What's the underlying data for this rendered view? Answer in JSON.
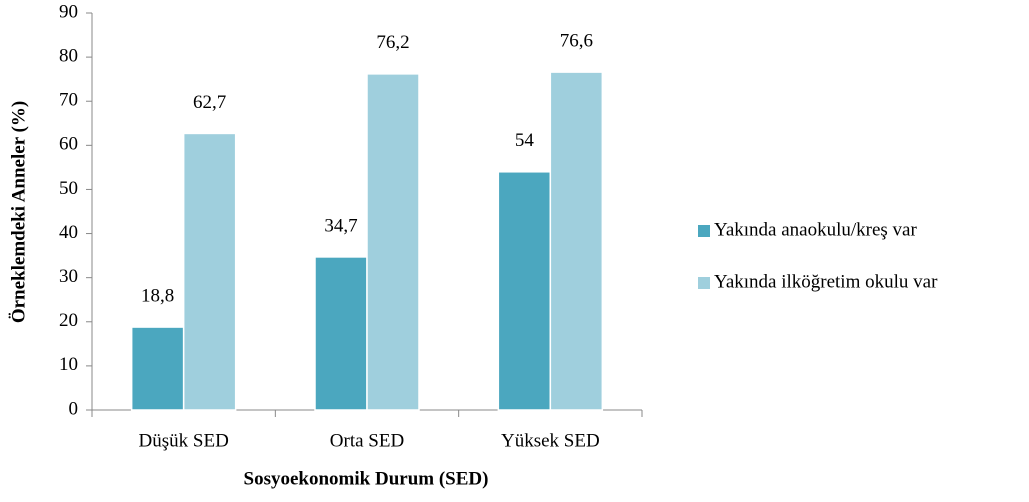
{
  "chart_data": {
    "type": "bar",
    "x_label": "Sosyoekonomik Durum (SED)",
    "y_label": "Örneklemdeki Anneler (%)",
    "categories": [
      "Düşük SED",
      "Orta SED",
      "Yüksek SED"
    ],
    "series": [
      {
        "name": "Yakında anaokulu/kreş var",
        "color": "#4ba7bf",
        "values": [
          18.8,
          34.7,
          54
        ],
        "value_labels": [
          "18,8",
          "34,7",
          "54"
        ]
      },
      {
        "name": "Yakında ilköğretim okulu var",
        "color": "#9fcfdd",
        "values": [
          62.7,
          76.2,
          76.6
        ],
        "value_labels": [
          "62,7",
          "76,2",
          "76,6"
        ]
      }
    ],
    "ylim": [
      0,
      90
    ],
    "yticks": [
      0,
      10,
      20,
      30,
      40,
      50,
      60,
      70,
      80,
      90
    ],
    "legend": "right"
  }
}
